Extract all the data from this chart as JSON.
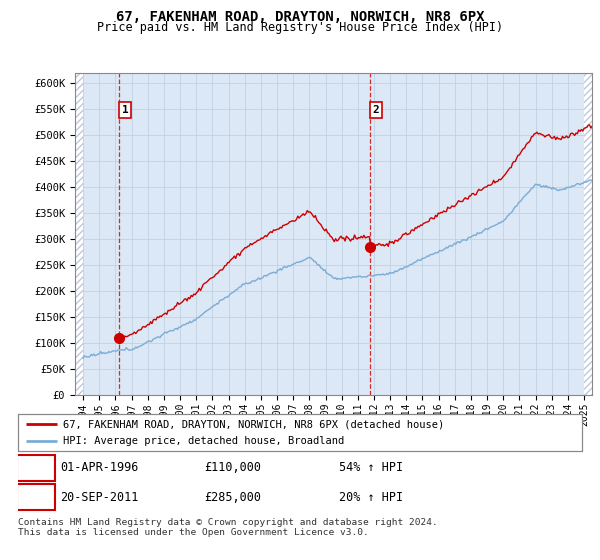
{
  "title": "67, FAKENHAM ROAD, DRAYTON, NORWICH, NR8 6PX",
  "subtitle": "Price paid vs. HM Land Registry's House Price Index (HPI)",
  "ylim": [
    0,
    620000
  ],
  "yticks": [
    0,
    50000,
    100000,
    150000,
    200000,
    250000,
    300000,
    350000,
    400000,
    450000,
    500000,
    550000,
    600000
  ],
  "ytick_labels": [
    "£0",
    "£50K",
    "£100K",
    "£150K",
    "£200K",
    "£250K",
    "£300K",
    "£350K",
    "£400K",
    "£450K",
    "£500K",
    "£550K",
    "£600K"
  ],
  "hpi_color": "#7aacd6",
  "price_color": "#cc0000",
  "sale1_year": 1996.25,
  "sale1_price": 110000,
  "sale1_label": "1",
  "sale2_year": 2011.75,
  "sale2_price": 285000,
  "sale2_label": "2",
  "legend_line1": "67, FAKENHAM ROAD, DRAYTON, NORWICH, NR8 6PX (detached house)",
  "legend_line2": "HPI: Average price, detached house, Broadland",
  "annotation1_date": "01-APR-1996",
  "annotation1_price": "£110,000",
  "annotation1_pct": "54% ↑ HPI",
  "annotation2_date": "20-SEP-2011",
  "annotation2_price": "£285,000",
  "annotation2_pct": "20% ↑ HPI",
  "footnote": "Contains HM Land Registry data © Crown copyright and database right 2024.\nThis data is licensed under the Open Government Licence v3.0.",
  "bg_color": "#dce8f5",
  "plot_bg": "#ffffff",
  "grid_color": "#b8cfe0",
  "hatch_color": "#c0c8d8",
  "xmin": 1993.5,
  "xmax": 2025.5
}
